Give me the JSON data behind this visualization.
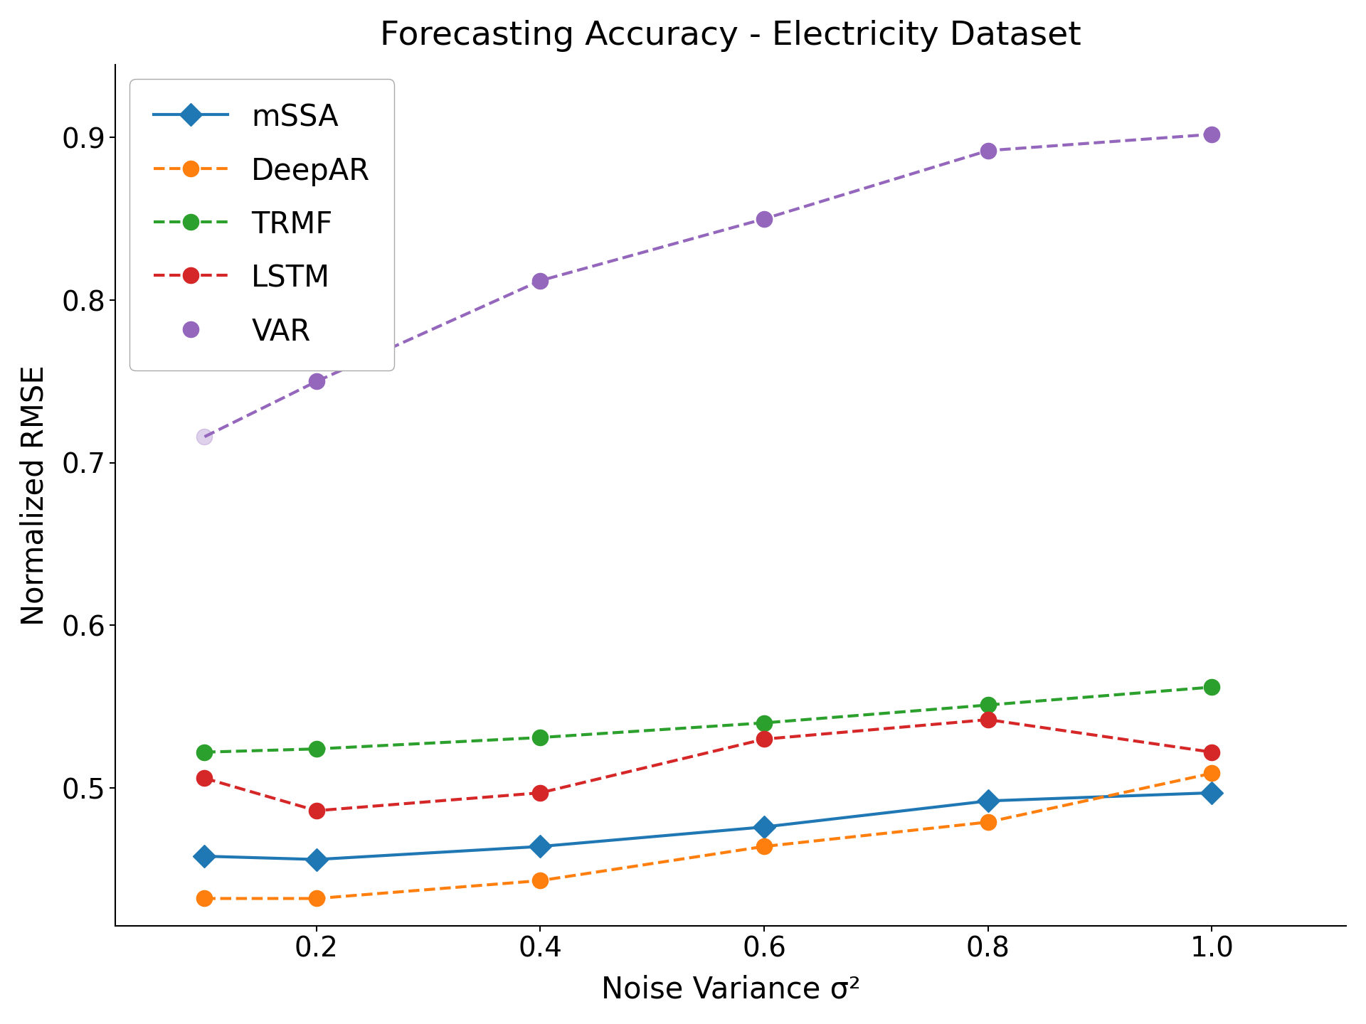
{
  "title": "Forecasting Accuracy - Electricity Dataset",
  "xlabel": "Noise Variance σ²",
  "ylabel": "Normalized RMSE",
  "x": [
    0.1,
    0.2,
    0.4,
    0.6,
    0.8,
    1.0
  ],
  "series": {
    "mSSA": {
      "y": [
        0.458,
        0.456,
        0.464,
        0.476,
        0.492,
        0.497
      ],
      "color": "#1f77b4",
      "linestyle": "-",
      "marker": "D",
      "markersize": 16,
      "linewidth": 3.0,
      "dashed": false
    },
    "DeepAR": {
      "y": [
        0.432,
        0.432,
        0.443,
        0.464,
        0.479,
        0.509
      ],
      "color": "#ff7f0e",
      "linestyle": "--",
      "marker": "o",
      "markersize": 16,
      "linewidth": 3.0,
      "dashed": true
    },
    "TRMF": {
      "y": [
        0.522,
        0.524,
        0.531,
        0.54,
        0.551,
        0.562
      ],
      "color": "#2ca02c",
      "linestyle": "--",
      "marker": "o",
      "markersize": 16,
      "linewidth": 3.0,
      "dashed": true
    },
    "LSTM": {
      "y": [
        0.506,
        0.486,
        0.497,
        0.53,
        0.542,
        0.522
      ],
      "color": "#d62728",
      "linestyle": "--",
      "marker": "o",
      "markersize": 16,
      "linewidth": 3.0,
      "dashed": true
    },
    "VAR": {
      "y": [
        0.716,
        0.75,
        0.812,
        0.85,
        0.892,
        0.902
      ],
      "color": "#9467bd",
      "linestyle": "--",
      "marker": "o",
      "markersize": 16,
      "linewidth": 3.0,
      "dashed": true,
      "first_point_alpha": 0.3
    }
  },
  "ylim": [
    0.415,
    0.945
  ],
  "xlim": [
    0.02,
    1.12
  ],
  "xticks": [
    0.2,
    0.4,
    0.6,
    0.8,
    1.0
  ],
  "yticks": [
    0.5,
    0.6,
    0.7,
    0.8,
    0.9
  ],
  "legend_loc": "upper left",
  "title_fontsize": 34,
  "label_fontsize": 30,
  "tick_fontsize": 28,
  "legend_fontsize": 30,
  "background_color": "#ffffff"
}
